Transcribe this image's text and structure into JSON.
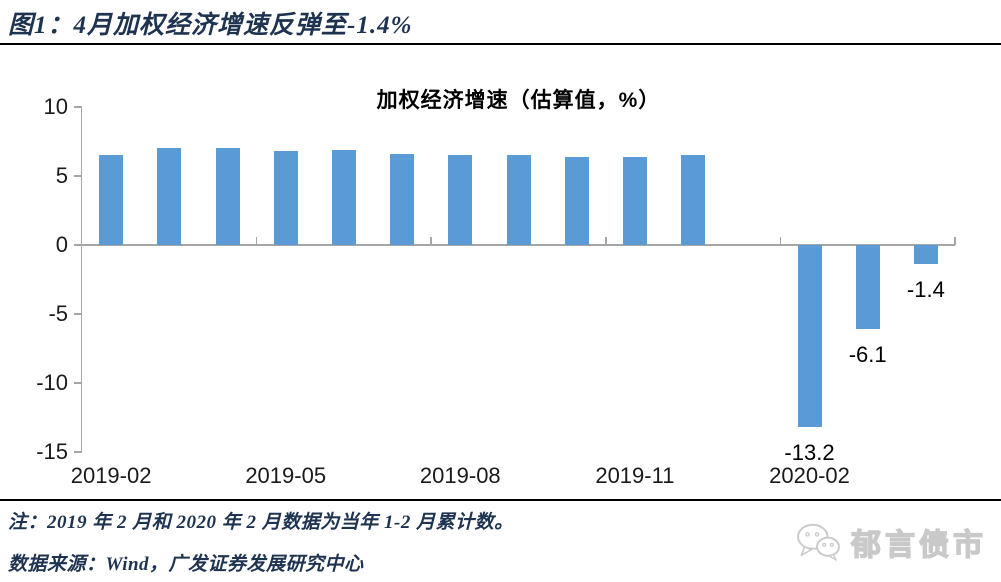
{
  "figure_title": "图1：4月加权经济增速反弹至-1.4%",
  "note": "注：2019 年 2 月和 2020 年 2 月数据为当年 1-2 月累计数。",
  "source": "数据来源：Wind，广发证券发展研究中心",
  "watermark": {
    "label": "郁言债市",
    "icon": "wechat-icon"
  },
  "colors": {
    "bar_blue": "#5B9BD5",
    "axis_grey": "#A6A6A6",
    "navy_text": "#1E3350",
    "divider_black": "#000000",
    "watermark_grey": "#D6D6D6"
  },
  "chart_data": {
    "type": "bar",
    "title": "加权经济增速（估算值，%）",
    "categories": [
      "2019-02",
      "2019-03",
      "2019-04",
      "2019-05",
      "2019-06",
      "2019-07",
      "2019-08",
      "2019-09",
      "2019-10",
      "2019-11",
      "2019-12",
      "2020-01",
      "2020-02",
      "2020-03",
      "2020-04"
    ],
    "values": [
      6.5,
      7.0,
      7.0,
      6.8,
      6.9,
      6.6,
      6.5,
      6.5,
      6.4,
      6.4,
      6.5,
      null,
      -13.2,
      -6.1,
      -1.4
    ],
    "point_labels": [
      null,
      null,
      null,
      null,
      null,
      null,
      null,
      null,
      null,
      null,
      null,
      null,
      "-13.2",
      "-6.1",
      "-1.4"
    ],
    "x_tick_labels": [
      "2019-02",
      "2019-05",
      "2019-08",
      "2019-11",
      "2020-02"
    ],
    "y_ticks": [
      10,
      5,
      0,
      -5,
      -10,
      -15
    ],
    "ylim": [
      -15,
      10
    ],
    "grid": false,
    "legend": null,
    "bar_color": "#5B9BD5"
  }
}
